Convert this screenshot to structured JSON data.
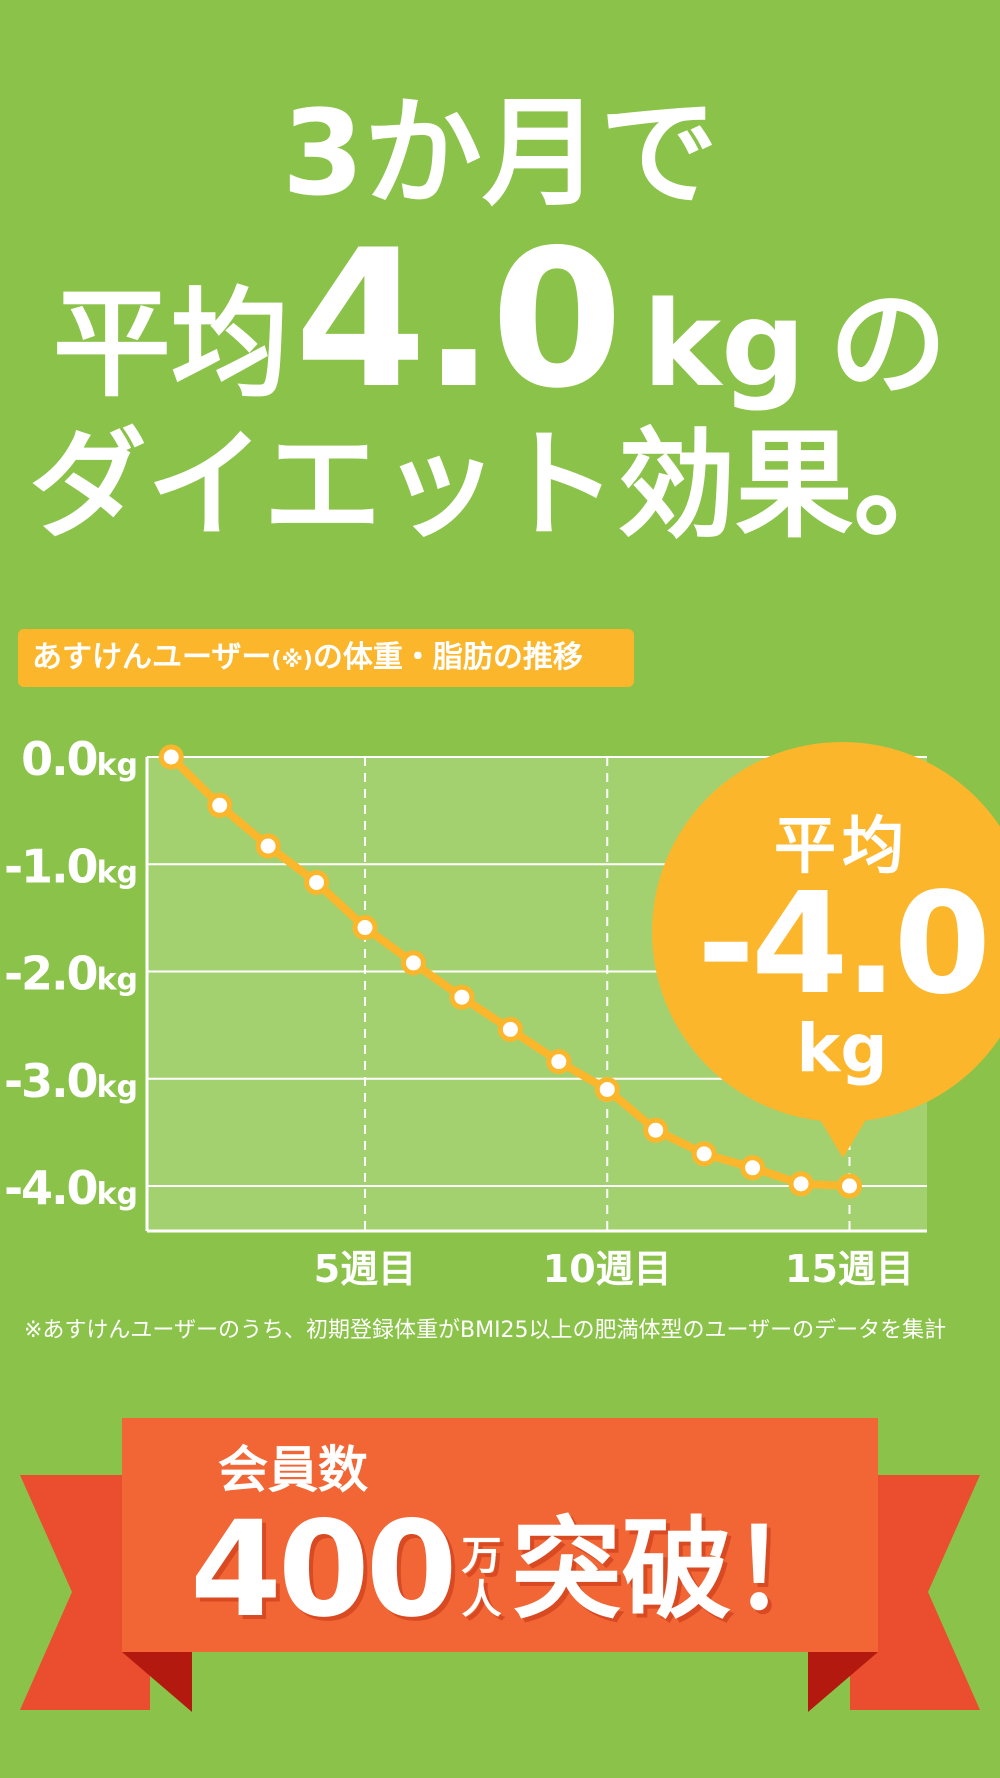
{
  "headline": {
    "line1": "3か月で",
    "line2_prefix": "平均",
    "line2_number": "4.0",
    "line2_unit": "kg",
    "line2_suffix": "の",
    "line3": "ダイエット効果。"
  },
  "chart_label": {
    "before": "あすけんユーザー",
    "paren": "(※)",
    "after": "の体重・脂肪の推移"
  },
  "bubble": {
    "avg_label": "平均",
    "value": "-4.0",
    "unit": "kg"
  },
  "footnote": "※あすけんユーザーのうち、初期登録体重がBMI25以上の肥満体型のユーザーのデータを集計",
  "ribbon": {
    "members_label": "会員数",
    "number": "400",
    "unit_top": "万",
    "unit_bottom": "人",
    "suffix": "突破！"
  },
  "colors": {
    "background": "#8bc34a",
    "plot_area": "#a3d16f",
    "line": "#fbb62c",
    "bubble": "#fbb62c",
    "label_badge": "#fbb62c",
    "ribbon_front": "#f26636",
    "ribbon_back": "#ea4e2e",
    "ribbon_fold": "#b3190f"
  },
  "chart_data": {
    "type": "line",
    "x": [
      1,
      2,
      3,
      4,
      5,
      6,
      7,
      8,
      9,
      10,
      11,
      12,
      13,
      14,
      15
    ],
    "series": [
      {
        "values": [
          0.0,
          -0.45,
          -0.83,
          -1.17,
          -1.59,
          -1.92,
          -2.24,
          -2.54,
          -2.84,
          -3.1,
          -3.48,
          -3.7,
          -3.83,
          -3.98,
          -4.0
        ]
      }
    ],
    "xticks": [
      {
        "value": 5,
        "label": "5週目"
      },
      {
        "value": 10,
        "label": "10週目"
      },
      {
        "value": 15,
        "label": "15週目"
      }
    ],
    "yticks": [
      {
        "value": 0,
        "num": "0.0",
        "unit": "kg"
      },
      {
        "value": -1,
        "num": "-1.0",
        "unit": "kg"
      },
      {
        "value": -2,
        "num": "-2.0",
        "unit": "kg"
      },
      {
        "value": -3,
        "num": "-3.0",
        "unit": "kg"
      },
      {
        "value": -4,
        "num": "-4.0",
        "unit": "kg"
      }
    ],
    "xlim": [
      0.5,
      16.6
    ],
    "ylim": [
      -4.4,
      0
    ],
    "grid": true
  }
}
